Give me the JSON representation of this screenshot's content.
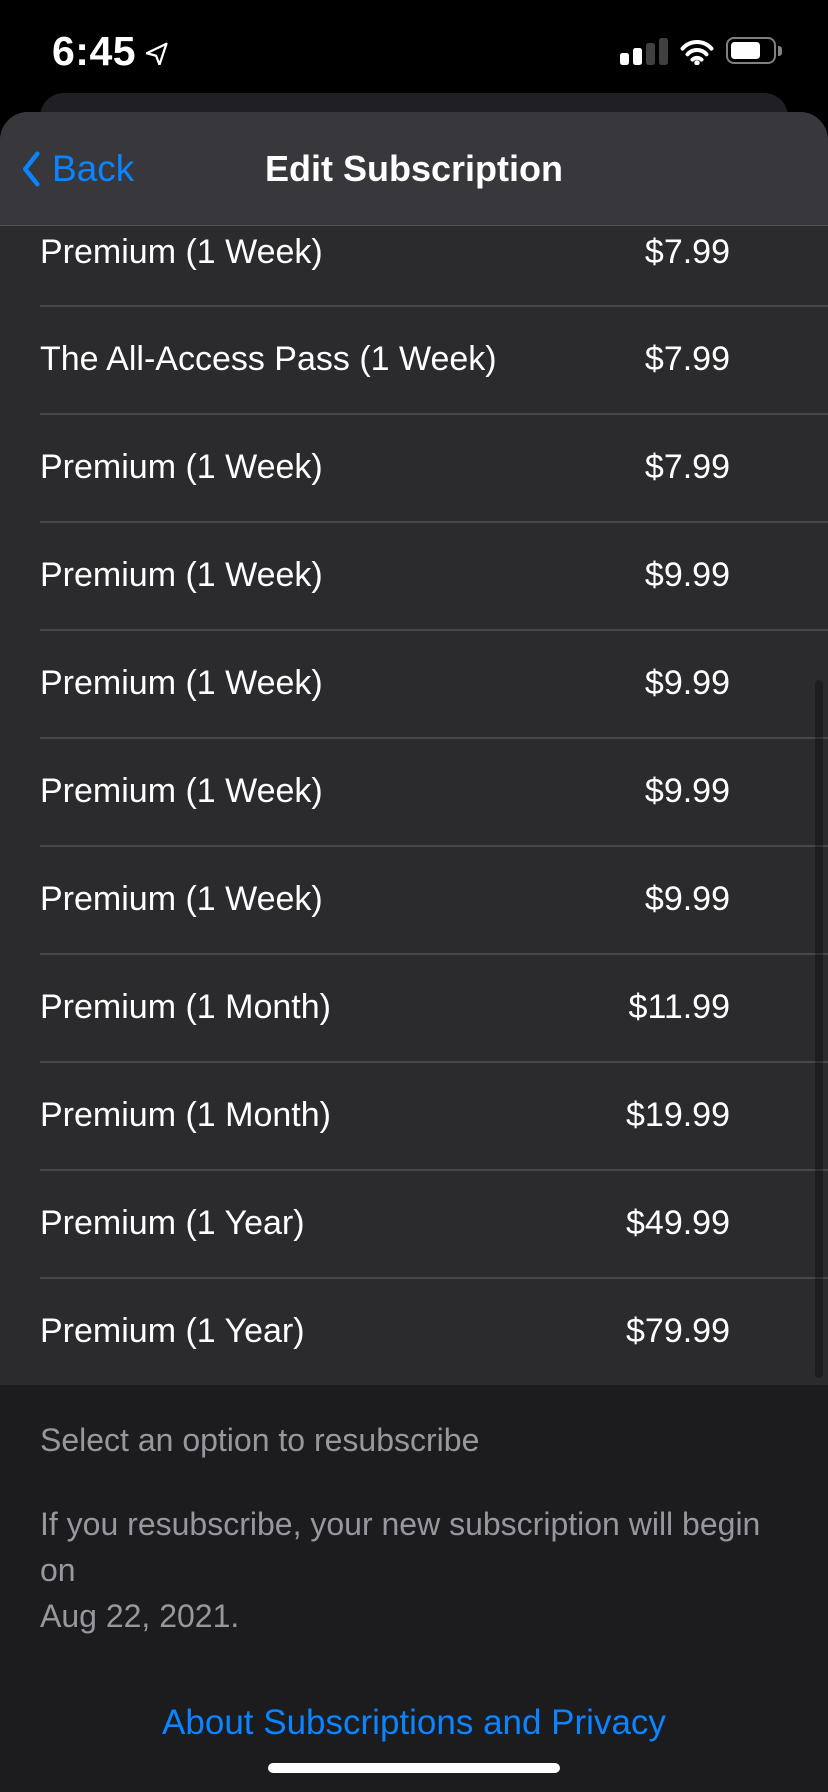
{
  "colors": {
    "accent_blue": "#0a84ff",
    "sheet_bg": "#2b2b2e",
    "nav_bg": "#38373b",
    "footer_bg": "#1c1b1e",
    "gray_text": "#97979d"
  },
  "status_bar": {
    "time": "6:45",
    "icons": [
      "location-arrow-icon",
      "cellular-signal-icon",
      "wifi-icon",
      "battery-icon"
    ],
    "signal_bars_filled": 2,
    "signal_bars_total": 4,
    "battery_percent_visual": 72
  },
  "navbar": {
    "back_label": "Back",
    "title": "Edit Subscription"
  },
  "list": {
    "rows": [
      {
        "name": "Premium (1 Week)",
        "price": "$7.99"
      },
      {
        "name": "The All-Access Pass (1 Week)",
        "price": "$7.99"
      },
      {
        "name": "Premium (1 Week)",
        "price": "$7.99"
      },
      {
        "name": "Premium (1 Week)",
        "price": "$9.99"
      },
      {
        "name": "Premium (1 Week)",
        "price": "$9.99"
      },
      {
        "name": "Premium (1 Week)",
        "price": "$9.99"
      },
      {
        "name": "Premium (1 Week)",
        "price": "$9.99"
      },
      {
        "name": "Premium (1 Month)",
        "price": "$11.99"
      },
      {
        "name": "Premium (1 Month)",
        "price": "$19.99"
      },
      {
        "name": "Premium (1 Year)",
        "price": "$49.99"
      },
      {
        "name": "Premium (1 Year)",
        "price": "$79.99"
      }
    ]
  },
  "footer": {
    "caption": "Select an option to resubscribe",
    "note_lines": [
      "If you resubscribe, your new subscription will begin on",
      "Aug 22, 2021."
    ],
    "link_label": "About Subscriptions and Privacy"
  }
}
